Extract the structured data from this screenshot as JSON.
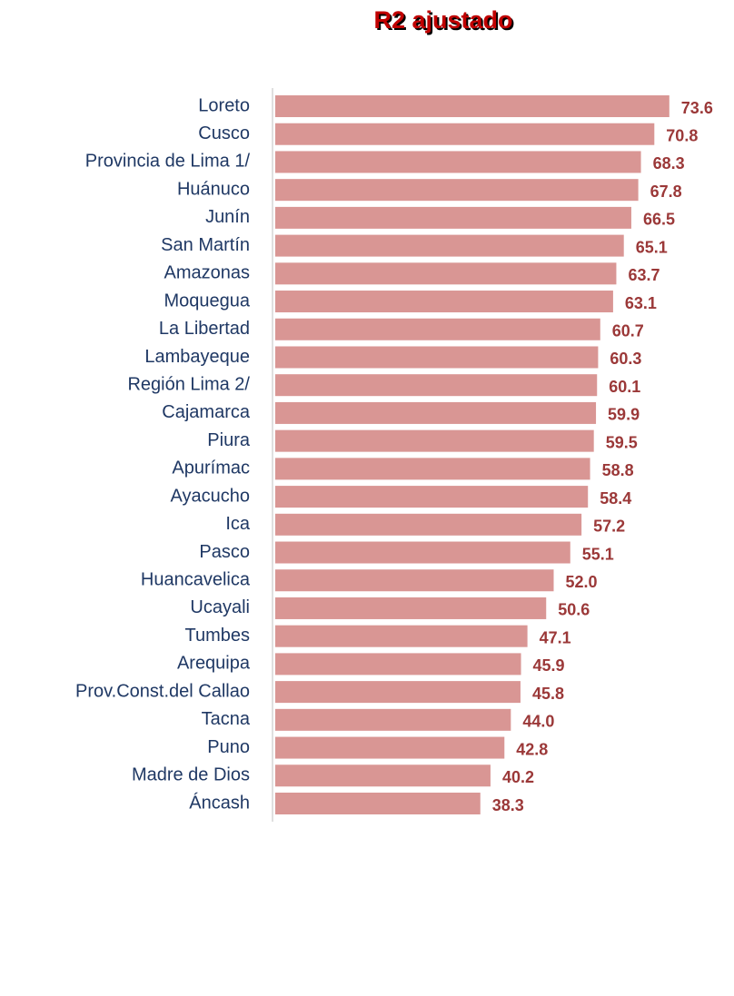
{
  "chart_data": {
    "type": "bar",
    "orientation": "horizontal",
    "title": "R2 ajustado",
    "categories": [
      "Loreto",
      "Cusco",
      "Provincia de Lima 1/",
      "Huánuco",
      "Junín",
      "San Martín",
      "Amazonas",
      "Moquegua",
      "La Libertad",
      "Lambayeque",
      "Región Lima 2/",
      "Cajamarca",
      "Piura",
      "Apurímac",
      "Ayacucho",
      "Ica",
      "Pasco",
      "Huancavelica",
      "Ucayali",
      "Tumbes",
      "Arequipa",
      "Prov.Const.del Callao",
      "Tacna",
      "Puno",
      "Madre de Dios",
      "Áncash"
    ],
    "values": [
      73.6,
      70.8,
      68.3,
      67.8,
      66.5,
      65.1,
      63.7,
      63.1,
      60.7,
      60.3,
      60.1,
      59.9,
      59.5,
      58.8,
      58.4,
      57.2,
      55.1,
      52.0,
      50.6,
      47.1,
      45.9,
      45.8,
      44.0,
      42.8,
      40.2,
      38.3
    ],
    "value_labels": [
      "73.6",
      "70.8",
      "68.3",
      "67.8",
      "66.5",
      "65.1",
      "63.7",
      "63.1",
      "60.7",
      "60.3",
      "60.1",
      "59.9",
      "59.5",
      "58.8",
      "58.4",
      "57.2",
      "55.1",
      "52.0",
      "50.6",
      "47.1",
      "45.9",
      "45.8",
      "44.0",
      "42.8",
      "40.2",
      "38.3"
    ],
    "color": "#d99694",
    "xlim": [
      0,
      85
    ]
  }
}
